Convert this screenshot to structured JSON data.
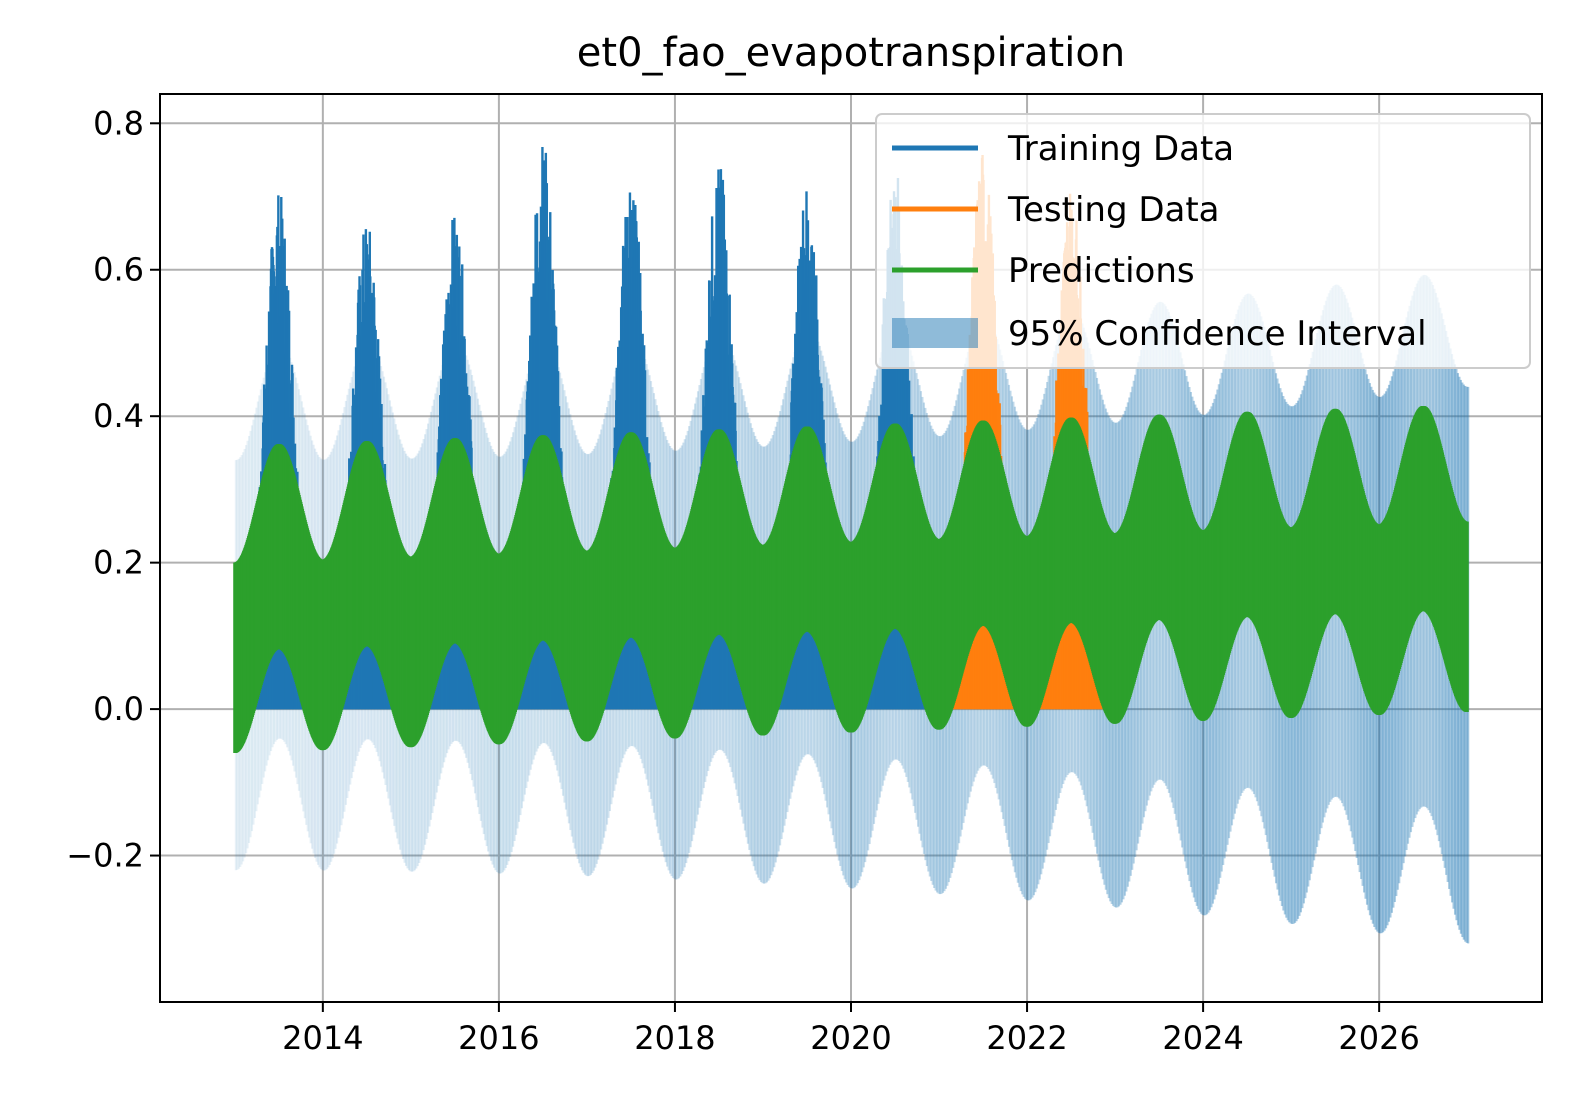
{
  "chart_data": {
    "type": "line",
    "title": "et0_fao_evapotranspiration",
    "xlabel": "",
    "ylabel": "",
    "xlim": [
      2012.15,
      2027.85
    ],
    "ylim": [
      -0.4,
      0.84
    ],
    "x_ticks": [
      2014,
      2016,
      2018,
      2020,
      2022,
      2024,
      2026
    ],
    "x_tick_labels": [
      "2014",
      "2016",
      "2018",
      "2020",
      "2022",
      "2024",
      "2026"
    ],
    "y_ticks": [
      -0.2,
      0.0,
      0.2,
      0.4,
      0.6,
      0.8
    ],
    "y_tick_labels": [
      "−0.2",
      "0.0",
      "0.2",
      "0.4",
      "0.6",
      "0.8"
    ],
    "grid": true,
    "legend_position": "top-right",
    "series": [
      {
        "name": "Training Data",
        "color": "#1f77b4",
        "style": "line",
        "x_range": [
          2013.0,
          2021.0
        ],
        "seasonal_peaks": [
          {
            "x": 2013.5,
            "y": 0.71
          },
          {
            "x": 2014.5,
            "y": 0.67
          },
          {
            "x": 2015.5,
            "y": 0.68
          },
          {
            "x": 2016.5,
            "y": 0.78
          },
          {
            "x": 2017.5,
            "y": 0.73
          },
          {
            "x": 2018.5,
            "y": 0.75
          },
          {
            "x": 2019.5,
            "y": 0.72
          },
          {
            "x": 2020.5,
            "y": 0.74
          }
        ],
        "winter_level": 0.02
      },
      {
        "name": "Testing Data",
        "color": "#ff7f0e",
        "style": "line",
        "x_range": [
          2021.0,
          2023.0
        ],
        "seasonal_peaks": [
          {
            "x": 2021.5,
            "y": 0.77
          },
          {
            "x": 2022.5,
            "y": 0.72
          }
        ],
        "winter_level": 0.02
      },
      {
        "name": "Predictions",
        "color": "#2ca02c",
        "style": "line",
        "x_range": [
          2013.0,
          2027.0
        ],
        "band_upper_winter": 0.2,
        "band_upper_summer": 0.36,
        "band_lower_winter": -0.06,
        "band_lower_summer": 0.08,
        "trend_per_year": 0.004
      },
      {
        "name": "95% Confidence Interval",
        "color": "#1f77b4",
        "style": "band",
        "x_range": [
          2013.0,
          2027.0
        ],
        "lower_winter": -0.22,
        "lower_summer": -0.04,
        "upper_winter": 0.34,
        "upper_summer": 0.5,
        "lower_end_value": -0.33
      }
    ]
  }
}
